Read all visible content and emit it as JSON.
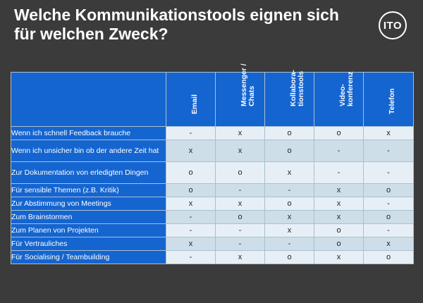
{
  "title_line1": "Welche Kommunikationstools eignen sich",
  "title_line2": "für welchen Zweck?",
  "logo_text": "ITO",
  "colors": {
    "background": "#3b3b3b",
    "header_blue": "#1565d0",
    "row_light": "#e7eff6",
    "row_dark": "#cddee8"
  },
  "columns": [
    "Email",
    "Messenger /\nChats",
    "Kollabora-\ntionstools",
    "Video-\nkonferenz",
    "Telefon"
  ],
  "rows": [
    {
      "label": "Wenn ich schnell Feedback brauche",
      "values": [
        "-",
        "x",
        "o",
        "o",
        "x"
      ]
    },
    {
      "label": "Wenn ich unsicher bin ob der andere Zeit hat",
      "values": [
        "x",
        "x",
        "o",
        "-",
        "-"
      ]
    },
    {
      "label": "Zur Dokumentation von erledigten Dingen",
      "values": [
        "o",
        "o",
        "x",
        "-",
        "-"
      ]
    },
    {
      "label": "Für sensible Themen (z.B. Kritik)",
      "values": [
        "o",
        "-",
        "-",
        "x",
        "o"
      ]
    },
    {
      "label": "Zur Abstimmung von Meetings",
      "values": [
        "x",
        "x",
        "o",
        "x",
        "-"
      ]
    },
    {
      "label": "Zum Brainstormen",
      "values": [
        "-",
        "o",
        "x",
        "x",
        "o"
      ]
    },
    {
      "label": "Zum Planen von Projekten",
      "values": [
        "-",
        "-",
        "x",
        "o",
        "-"
      ]
    },
    {
      "label": "Für Vertrauliches",
      "values": [
        "x",
        "-",
        "-",
        "o",
        "x"
      ]
    },
    {
      "label": "Für Socialising / Teambuilding",
      "values": [
        "-",
        "x",
        "o",
        "x",
        "o"
      ]
    }
  ]
}
